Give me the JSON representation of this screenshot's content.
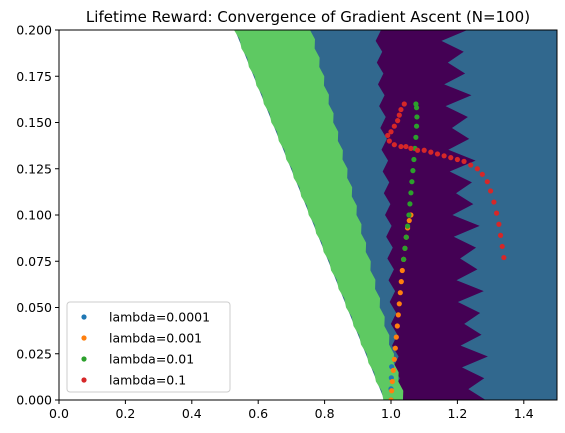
{
  "chart_data": {
    "type": "scatter",
    "title": "Lifetime Reward: Convergence of Gradient Ascent (N=100)",
    "xlabel": "",
    "ylabel": "",
    "xlim": [
      0,
      1.5
    ],
    "ylim": [
      0,
      0.2
    ],
    "x_ticks": [
      "0.0",
      "0.2",
      "0.4",
      "0.6",
      "0.8",
      "1.0",
      "1.2",
      "1.4"
    ],
    "y_ticks": [
      "0.000",
      "0.025",
      "0.050",
      "0.075",
      "0.100",
      "0.125",
      "0.150",
      "0.175",
      "0.200"
    ],
    "grid": false,
    "legend_position": "lower-left",
    "background_regions": {
      "colors": {
        "undefined": "#ffffff",
        "low": "#5ec962",
        "mid": "#31688e",
        "high": "#440154"
      },
      "low_band": {
        "left_edge": [
          [
            0.53,
            0.2
          ],
          [
            0.98,
            0.0
          ]
        ],
        "right_edge": [
          [
            0.76,
            0.2
          ],
          [
            1.04,
            0.0
          ]
        ]
      },
      "high_band": {
        "left_edge": [
          [
            0.96,
            0.2
          ],
          [
            1.02,
            0.0
          ]
        ],
        "right_edge": [
          [
            1.18,
            0.2
          ],
          [
            1.25,
            0.0
          ]
        ]
      }
    },
    "series": [
      {
        "name": "lambda=0.0001",
        "color": "#1f77b4",
        "points": [
          [
            1.0,
            0.0
          ],
          [
            1.0,
            0.006
          ],
          [
            1.001,
            0.012
          ],
          [
            1.002,
            0.018
          ]
        ]
      },
      {
        "name": "lambda=0.001",
        "color": "#ff7f0e",
        "points": [
          [
            1.0,
            0.0
          ],
          [
            1.002,
            0.005
          ],
          [
            1.004,
            0.01
          ],
          [
            1.007,
            0.016
          ],
          [
            1.01,
            0.022
          ],
          [
            1.013,
            0.028
          ],
          [
            1.016,
            0.034
          ],
          [
            1.019,
            0.04
          ],
          [
            1.022,
            0.046
          ],
          [
            1.025,
            0.052
          ],
          [
            1.028,
            0.058
          ],
          [
            1.031,
            0.064
          ],
          [
            1.034,
            0.07
          ],
          [
            1.038,
            0.076
          ],
          [
            1.042,
            0.082
          ],
          [
            1.046,
            0.088
          ],
          [
            1.05,
            0.093
          ],
          [
            1.055,
            0.097
          ],
          [
            1.06,
            0.1
          ]
        ]
      },
      {
        "name": "lambda=0.01",
        "color": "#2ca02c",
        "points": [
          [
            1.038,
            0.076
          ],
          [
            1.042,
            0.082
          ],
          [
            1.046,
            0.088
          ],
          [
            1.05,
            0.094
          ],
          [
            1.054,
            0.1
          ],
          [
            1.057,
            0.106
          ],
          [
            1.06,
            0.112
          ],
          [
            1.063,
            0.118
          ],
          [
            1.066,
            0.124
          ],
          [
            1.069,
            0.13
          ],
          [
            1.072,
            0.136
          ],
          [
            1.075,
            0.142
          ],
          [
            1.077,
            0.148
          ],
          [
            1.078,
            0.153
          ],
          [
            1.077,
            0.158
          ],
          [
            1.075,
            0.16
          ]
        ]
      },
      {
        "name": "lambda=0.1",
        "color": "#d62728",
        "points": [
          [
            1.34,
            0.077
          ],
          [
            1.335,
            0.083
          ],
          [
            1.33,
            0.089
          ],
          [
            1.325,
            0.095
          ],
          [
            1.318,
            0.101
          ],
          [
            1.31,
            0.107
          ],
          [
            1.3,
            0.113
          ],
          [
            1.29,
            0.118
          ],
          [
            1.275,
            0.122
          ],
          [
            1.26,
            0.125
          ],
          [
            1.24,
            0.127
          ],
          [
            1.22,
            0.129
          ],
          [
            1.2,
            0.13
          ],
          [
            1.18,
            0.131
          ],
          [
            1.16,
            0.132
          ],
          [
            1.14,
            0.133
          ],
          [
            1.12,
            0.134
          ],
          [
            1.1,
            0.135
          ],
          [
            1.08,
            0.135
          ],
          [
            1.06,
            0.136
          ],
          [
            1.045,
            0.137
          ],
          [
            1.03,
            0.137
          ],
          [
            1.01,
            0.138
          ],
          [
            0.995,
            0.14
          ],
          [
            0.99,
            0.143
          ],
          [
            1.0,
            0.145
          ],
          [
            1.01,
            0.148
          ],
          [
            1.02,
            0.151
          ],
          [
            1.025,
            0.154
          ],
          [
            1.03,
            0.157
          ],
          [
            1.04,
            0.16
          ]
        ]
      }
    ]
  }
}
